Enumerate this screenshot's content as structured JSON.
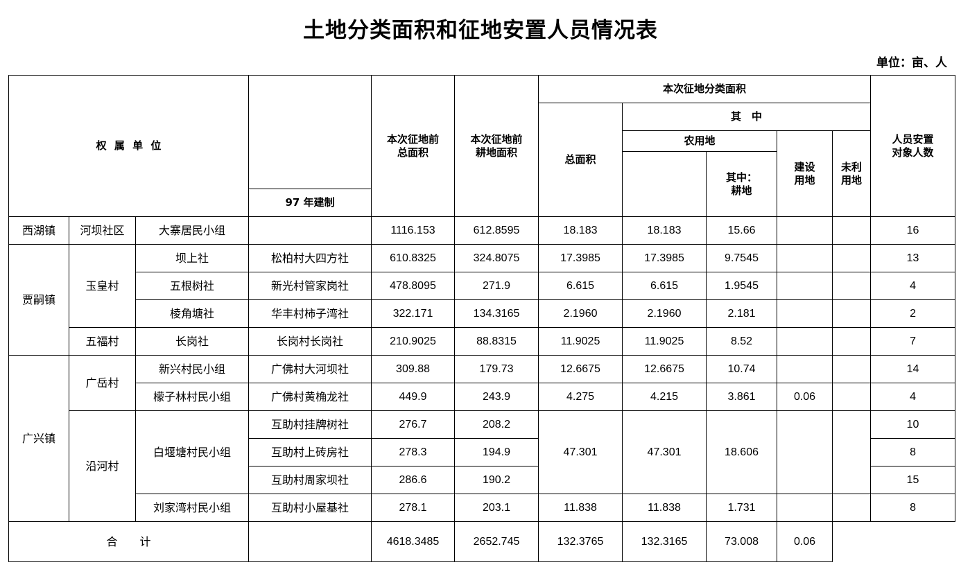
{
  "title": "土地分类面积和征地安置人员情况表",
  "unit": "单位：亩、人",
  "headers": {
    "ownership": "权 属 单 位",
    "system97": "97 年建制",
    "total_before_1": "本次征地前",
    "total_before_2": "总面积",
    "cultivated_before_1": "本次征地前",
    "cultivated_before_2": "耕地面积",
    "classification": "本次征地分类面积",
    "total_area": "总面积",
    "among": "其　中",
    "agricultural": "农用地",
    "of_which_1": "其中：",
    "of_which_2": "耕地",
    "construction_1": "建设",
    "construction_2": "用地",
    "unused_1": "未利",
    "unused_2": "用地",
    "resettle_1": "人员安置",
    "resettle_2": "对象人数"
  },
  "towns": {
    "xihu": "西湖镇",
    "jiasi": "贾嗣镇",
    "guangxing": "广兴镇"
  },
  "villages": {
    "heba": "河坝社区",
    "yuhuang": "玉皇村",
    "wufu": "五福村",
    "guangyue": "广岳村",
    "yanhe": "沿河村"
  },
  "rows": [
    {
      "group": "大寨居民小组",
      "old": "",
      "total": "1116.153",
      "cult": "612.8595",
      "area": "18.183",
      "agri": "18.183",
      "arable": "15.66",
      "cons": "",
      "unused": "",
      "people": "16"
    },
    {
      "group": "坝上社",
      "old": "松柏村大四方社",
      "total": "610.8325",
      "cult": "324.8075",
      "area": "17.3985",
      "agri": "17.3985",
      "arable": "9.7545",
      "cons": "",
      "unused": "",
      "people": "13"
    },
    {
      "group": "五根树社",
      "old": "新光村管家岗社",
      "total": "478.8095",
      "cult": "271.9",
      "area": "6.615",
      "agri": "6.615",
      "arable": "1.9545",
      "cons": "",
      "unused": "",
      "people": "4"
    },
    {
      "group": "棱角塘社",
      "old": "华丰村柿子湾社",
      "total": "322.171",
      "cult": "134.3165",
      "area": "2.1960",
      "agri": "2.1960",
      "arable": "2.181",
      "cons": "",
      "unused": "",
      "people": "2"
    },
    {
      "group": "长岗社",
      "old": "长岗村长岗社",
      "total": "210.9025",
      "cult": "88.8315",
      "area": "11.9025",
      "agri": "11.9025",
      "arable": "8.52",
      "cons": "",
      "unused": "",
      "people": "7"
    },
    {
      "group": "新兴村民小组",
      "old": "广佛村大河坝社",
      "total": "309.88",
      "cult": "179.73",
      "area": "12.6675",
      "agri": "12.6675",
      "arable": "10.74",
      "cons": "",
      "unused": "",
      "people": "14"
    },
    {
      "group": "檬子林村民小组",
      "old": "广佛村黄桷龙社",
      "total": "449.9",
      "cult": "243.9",
      "area": "4.275",
      "agri": "4.215",
      "arable": "3.861",
      "cons": "0.06",
      "unused": "",
      "people": "4"
    },
    {
      "group": "白堰塘村民小组",
      "old": "互助村挂牌树社",
      "total": "276.7",
      "cult": "208.2",
      "area": "47.301",
      "agri": "47.301",
      "arable": "18.606",
      "cons": "",
      "unused": "",
      "people": "10"
    },
    {
      "group": "",
      "old": "互助村上砖房社",
      "total": "278.3",
      "cult": "194.9",
      "area": "",
      "agri": "",
      "arable": "",
      "cons": "",
      "unused": "",
      "people": "8"
    },
    {
      "group": "",
      "old": "互助村周家坝社",
      "total": "286.6",
      "cult": "190.2",
      "area": "",
      "agri": "",
      "arable": "",
      "cons": "",
      "unused": "",
      "people": "15"
    },
    {
      "group": "刘家湾村民小组",
      "old": "互助村小屋基社",
      "total": "278.1",
      "cult": "203.1",
      "area": "11.838",
      "agri": "11.838",
      "arable": "1.731",
      "cons": "",
      "unused": "",
      "people": "8"
    }
  ],
  "totals": {
    "label": "合　　计",
    "total": "4618.3485",
    "cult": "2652.745",
    "area": "132.3765",
    "agri": "132.3165",
    "arable": "73.008",
    "cons": "0.06"
  }
}
